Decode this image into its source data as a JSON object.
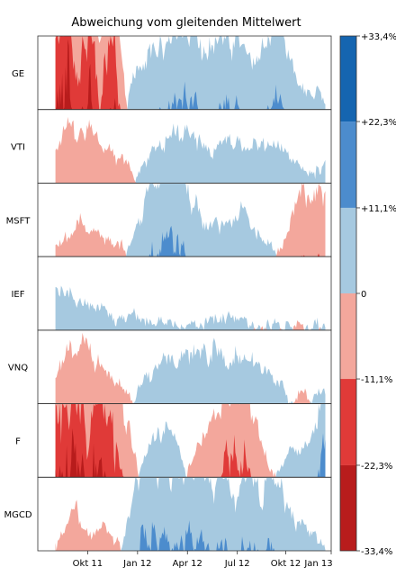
{
  "chart_data": {
    "type": "area",
    "subtype": "horizon",
    "title": "Abweichung vom gleitenden Mittelwert",
    "xlabel": "",
    "ylabel": "",
    "grid": false,
    "legend_position": "right",
    "series_names": [
      "GE",
      "VTI",
      "MSFT",
      "IEF",
      "VNQ",
      "F",
      "MGCD"
    ],
    "x_ticks": [
      "Okt 11",
      "Jan 12",
      "Apr 12",
      "Jul 12",
      "Okt 12",
      "Jan 13"
    ],
    "x_tick_positions": [
      0.17,
      0.34,
      0.51,
      0.68,
      0.845,
      1.0
    ],
    "legend": {
      "tick_labels": [
        "+33,4%",
        "+22,3%",
        "+11,1%",
        "0",
        "-11,1%",
        "-22,3%",
        "-33,4%"
      ],
      "values": [
        33.4,
        22.3,
        11.1,
        0,
        -11.1,
        -22.3,
        -33.4
      ],
      "band_colors": [
        "#1565b0",
        "#4c8ccd",
        "#a6c9e0",
        "#f3a79c",
        "#e03a38",
        "#b81c1c"
      ]
    },
    "band_width_percent": 11.1,
    "x_start": 0.06,
    "x_end": 0.98,
    "series": [
      {
        "name": "GE",
        "points": [
          [
            0.06,
            -20
          ],
          [
            0.1,
            -28
          ],
          [
            0.14,
            -18
          ],
          [
            0.18,
            -26
          ],
          [
            0.22,
            -14
          ],
          [
            0.26,
            -20
          ],
          [
            0.29,
            -8
          ],
          [
            0.31,
            3
          ],
          [
            0.35,
            7
          ],
          [
            0.4,
            9
          ],
          [
            0.45,
            10
          ],
          [
            0.5,
            12
          ],
          [
            0.53,
            13
          ],
          [
            0.56,
            8
          ],
          [
            0.6,
            10
          ],
          [
            0.65,
            11
          ],
          [
            0.7,
            10
          ],
          [
            0.74,
            7
          ],
          [
            0.78,
            9
          ],
          [
            0.82,
            12
          ],
          [
            0.85,
            9
          ],
          [
            0.88,
            6
          ],
          [
            0.9,
            4
          ],
          [
            0.93,
            2
          ],
          [
            0.96,
            3
          ],
          [
            0.98,
            2
          ]
        ]
      },
      {
        "name": "VTI",
        "points": [
          [
            0.06,
            -5
          ],
          [
            0.1,
            -9
          ],
          [
            0.14,
            -7
          ],
          [
            0.18,
            -8
          ],
          [
            0.22,
            -5
          ],
          [
            0.26,
            -4
          ],
          [
            0.3,
            -3
          ],
          [
            0.33,
            -1
          ],
          [
            0.37,
            4
          ],
          [
            0.42,
            7
          ],
          [
            0.47,
            8
          ],
          [
            0.52,
            8
          ],
          [
            0.56,
            6
          ],
          [
            0.6,
            5
          ],
          [
            0.64,
            7
          ],
          [
            0.68,
            6
          ],
          [
            0.72,
            6
          ],
          [
            0.76,
            5
          ],
          [
            0.8,
            6
          ],
          [
            0.84,
            5
          ],
          [
            0.88,
            3
          ],
          [
            0.91,
            2
          ],
          [
            0.95,
            2
          ],
          [
            0.98,
            3
          ]
        ]
      },
      {
        "name": "MSFT",
        "points": [
          [
            0.06,
            -1
          ],
          [
            0.1,
            -3
          ],
          [
            0.14,
            -5
          ],
          [
            0.18,
            -4
          ],
          [
            0.22,
            -3
          ],
          [
            0.26,
            -2
          ],
          [
            0.3,
            -1
          ],
          [
            0.33,
            3
          ],
          [
            0.37,
            8
          ],
          [
            0.41,
            12
          ],
          [
            0.44,
            16
          ],
          [
            0.47,
            14
          ],
          [
            0.5,
            10
          ],
          [
            0.54,
            7
          ],
          [
            0.58,
            5
          ],
          [
            0.62,
            5
          ],
          [
            0.66,
            6
          ],
          [
            0.7,
            7
          ],
          [
            0.73,
            4
          ],
          [
            0.77,
            3
          ],
          [
            0.81,
            1
          ],
          [
            0.84,
            -3
          ],
          [
            0.87,
            -7
          ],
          [
            0.9,
            -10
          ],
          [
            0.94,
            -8
          ],
          [
            0.98,
            -9
          ]
        ]
      },
      {
        "name": "IEF",
        "points": [
          [
            0.06,
            7
          ],
          [
            0.1,
            5
          ],
          [
            0.14,
            4
          ],
          [
            0.18,
            3
          ],
          [
            0.22,
            3
          ],
          [
            0.26,
            2
          ],
          [
            0.3,
            2
          ],
          [
            0.34,
            2
          ],
          [
            0.38,
            2
          ],
          [
            0.42,
            1
          ],
          [
            0.46,
            1
          ],
          [
            0.5,
            0
          ],
          [
            0.54,
            1
          ],
          [
            0.58,
            1.5
          ],
          [
            0.62,
            2
          ],
          [
            0.66,
            2
          ],
          [
            0.7,
            1.5
          ],
          [
            0.74,
            1
          ],
          [
            0.78,
            1
          ],
          [
            0.82,
            0.5
          ],
          [
            0.86,
            0.5
          ],
          [
            0.9,
            0.5
          ],
          [
            0.94,
            0.5
          ],
          [
            0.98,
            0.3
          ]
        ]
      },
      {
        "name": "VNQ",
        "points": [
          [
            0.06,
            -4
          ],
          [
            0.1,
            -7
          ],
          [
            0.14,
            -9
          ],
          [
            0.18,
            -8
          ],
          [
            0.22,
            -5
          ],
          [
            0.26,
            -3
          ],
          [
            0.3,
            -2
          ],
          [
            0.33,
            1
          ],
          [
            0.37,
            4
          ],
          [
            0.41,
            6
          ],
          [
            0.45,
            7
          ],
          [
            0.49,
            7
          ],
          [
            0.53,
            8
          ],
          [
            0.57,
            9
          ],
          [
            0.61,
            8
          ],
          [
            0.65,
            7
          ],
          [
            0.69,
            8
          ],
          [
            0.73,
            6
          ],
          [
            0.77,
            5
          ],
          [
            0.81,
            3
          ],
          [
            0.85,
            2
          ],
          [
            0.88,
            -1
          ],
          [
            0.91,
            -2
          ],
          [
            0.95,
            1
          ],
          [
            0.98,
            2
          ]
        ]
      },
      {
        "name": "F",
        "points": [
          [
            0.06,
            -27
          ],
          [
            0.1,
            -24
          ],
          [
            0.14,
            -22
          ],
          [
            0.17,
            -18
          ],
          [
            0.2,
            -25
          ],
          [
            0.23,
            -20
          ],
          [
            0.26,
            -17
          ],
          [
            0.29,
            -12
          ],
          [
            0.32,
            -6
          ],
          [
            0.36,
            3
          ],
          [
            0.4,
            6
          ],
          [
            0.44,
            8
          ],
          [
            0.48,
            5
          ],
          [
            0.52,
            -2
          ],
          [
            0.56,
            -6
          ],
          [
            0.59,
            -9
          ],
          [
            0.62,
            -12
          ],
          [
            0.66,
            -15
          ],
          [
            0.7,
            -13
          ],
          [
            0.74,
            -8
          ],
          [
            0.77,
            -4
          ],
          [
            0.8,
            -1
          ],
          [
            0.83,
            2
          ],
          [
            0.86,
            4
          ],
          [
            0.89,
            3
          ],
          [
            0.92,
            5
          ],
          [
            0.95,
            8
          ],
          [
            0.98,
            22
          ]
        ]
      },
      {
        "name": "MGCD",
        "points": [
          [
            0.06,
            -1
          ],
          [
            0.1,
            -4
          ],
          [
            0.13,
            -7
          ],
          [
            0.16,
            -3
          ],
          [
            0.19,
            -2
          ],
          [
            0.22,
            -5
          ],
          [
            0.25,
            -2
          ],
          [
            0.28,
            -1
          ],
          [
            0.31,
            5
          ],
          [
            0.34,
            12
          ],
          [
            0.37,
            14
          ],
          [
            0.4,
            13
          ],
          [
            0.43,
            14
          ],
          [
            0.46,
            13
          ],
          [
            0.49,
            12
          ],
          [
            0.52,
            12
          ],
          [
            0.55,
            12
          ],
          [
            0.58,
            11
          ],
          [
            0.61,
            11
          ],
          [
            0.64,
            10
          ],
          [
            0.67,
            10
          ],
          [
            0.7,
            11
          ],
          [
            0.73,
            11
          ],
          [
            0.76,
            9
          ],
          [
            0.79,
            10
          ],
          [
            0.82,
            9
          ],
          [
            0.85,
            7
          ],
          [
            0.88,
            4
          ],
          [
            0.91,
            3
          ],
          [
            0.94,
            2
          ],
          [
            0.98,
            1
          ]
        ]
      }
    ]
  }
}
